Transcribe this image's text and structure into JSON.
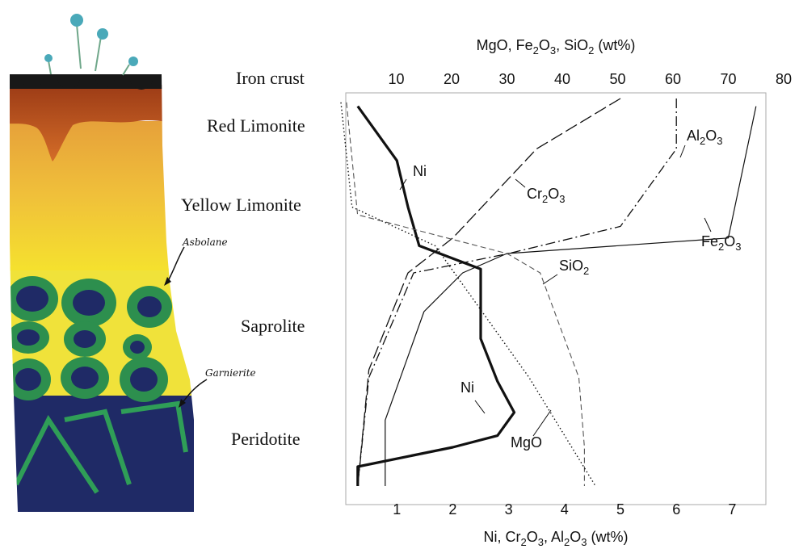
{
  "zones": [
    {
      "key": "iron_crust",
      "label": "Iron crust"
    },
    {
      "key": "red_limonite",
      "label": "Red Limonite"
    },
    {
      "key": "yellow_limonite",
      "label": "Yellow Limonite"
    },
    {
      "key": "saprolite",
      "label": "Saprolite"
    },
    {
      "key": "peridotite",
      "label": "Peridotite"
    }
  ],
  "annotations": {
    "asbolane": "Asbolane",
    "garnierite": "Garnierite"
  },
  "chart_data": {
    "type": "line",
    "top_axis": {
      "title": "MgO, Fe2O3, SiO2 (wt%)",
      "range": [
        0,
        80
      ],
      "ticks": [
        10,
        20,
        30,
        40,
        50,
        60,
        70,
        80
      ]
    },
    "bottom_axis": {
      "title": "Ni, Cr2O3, Al2O3 (wt%)",
      "range": [
        0,
        8
      ],
      "ticks": [
        1,
        2,
        3,
        4,
        5,
        6,
        7
      ]
    },
    "y_axis": {
      "reversed": true,
      "range": [
        0,
        100
      ],
      "note": "relative depth in profile, 0 = top"
    },
    "series": [
      {
        "name": "Ni",
        "axis": "bottom",
        "style": "bold",
        "points": [
          [
            0.3,
            2
          ],
          [
            1.0,
            16
          ],
          [
            1.2,
            28
          ],
          [
            1.4,
            38
          ],
          [
            2.5,
            44
          ],
          [
            2.5,
            62
          ],
          [
            2.8,
            73
          ],
          [
            3.1,
            81
          ],
          [
            2.8,
            87
          ],
          [
            2.0,
            90
          ],
          [
            0.3,
            95
          ],
          [
            0.3,
            100
          ]
        ]
      },
      {
        "name": "Cr2O3",
        "axis": "bottom",
        "style": "longdash",
        "points": [
          [
            5.0,
            0
          ],
          [
            3.5,
            13
          ],
          [
            2.0,
            36
          ],
          [
            1.2,
            45
          ],
          [
            0.5,
            70
          ],
          [
            0.3,
            100
          ]
        ]
      },
      {
        "name": "Al2O3",
        "axis": "bottom",
        "style": "dashdot",
        "points": [
          [
            6.0,
            0
          ],
          [
            6.0,
            13
          ],
          [
            5.0,
            33
          ],
          [
            3.0,
            40
          ],
          [
            1.3,
            45
          ],
          [
            0.5,
            72
          ],
          [
            0.3,
            100
          ]
        ]
      },
      {
        "name": "Fe2O3",
        "axis": "top",
        "style": "solid",
        "points": [
          [
            75,
            2
          ],
          [
            70,
            36
          ],
          [
            30,
            40
          ],
          [
            22,
            45
          ],
          [
            15,
            55
          ],
          [
            8,
            83
          ],
          [
            8,
            100
          ]
        ]
      },
      {
        "name": "SiO2",
        "axis": "top",
        "style": "dash",
        "points": [
          [
            1,
            1
          ],
          [
            3,
            30
          ],
          [
            30,
            40
          ],
          [
            36,
            45
          ],
          [
            43,
            72
          ],
          [
            44,
            90
          ],
          [
            44,
            100
          ]
        ]
      },
      {
        "name": "MgO",
        "axis": "top",
        "style": "dot",
        "points": [
          [
            0,
            1
          ],
          [
            2,
            28
          ],
          [
            17,
            38
          ],
          [
            34,
            72
          ],
          [
            46,
            100
          ]
        ]
      }
    ],
    "labels": [
      {
        "series": "Ni",
        "text": "Ni",
        "at": "upper"
      },
      {
        "series": "Ni",
        "text": "Ni",
        "at": "lower"
      },
      {
        "series": "Cr2O3",
        "text": "Cr2O3"
      },
      {
        "series": "Al2O3",
        "text": "Al2O3"
      },
      {
        "series": "Fe2O3",
        "text": "Fe2O3"
      },
      {
        "series": "SiO2",
        "text": "SiO2"
      },
      {
        "series": "MgO",
        "text": "MgO"
      }
    ]
  }
}
